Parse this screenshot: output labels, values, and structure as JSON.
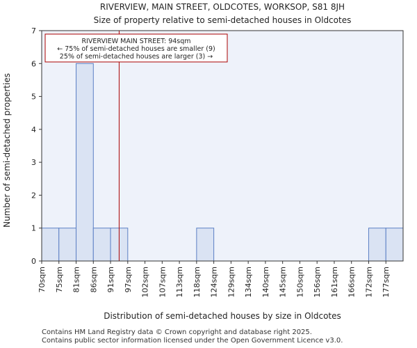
{
  "chart_data": {
    "type": "bar",
    "title": "RIVERVIEW, MAIN STREET, OLDCOTES, WORKSOP, S81 8JH",
    "subtitle": "Size of property relative to semi-detached houses in Oldcotes",
    "xlabel": "Distribution of semi-detached houses by size in Oldcotes",
    "ylabel": "Number of semi-detached properties",
    "categories": [
      "70sqm",
      "75sqm",
      "81sqm",
      "86sqm",
      "91sqm",
      "97sqm",
      "102sqm",
      "107sqm",
      "113sqm",
      "118sqm",
      "124sqm",
      "129sqm",
      "134sqm",
      "140sqm",
      "145sqm",
      "150sqm",
      "156sqm",
      "161sqm",
      "166sqm",
      "172sqm",
      "177sqm"
    ],
    "values": [
      1,
      1,
      6,
      1,
      1,
      0,
      0,
      0,
      0,
      1,
      0,
      0,
      0,
      0,
      0,
      0,
      0,
      0,
      0,
      1,
      1
    ],
    "ylim": [
      0,
      7
    ],
    "yticks": [
      0,
      1,
      2,
      3,
      4,
      5,
      6,
      7
    ],
    "marker": {
      "value_sqm": 94,
      "color": "#aa0000"
    },
    "annotation": {
      "line1": "RIVERVIEW MAIN STREET: 94sqm",
      "line2": "← 75% of semi-detached houses are smaller (9)",
      "line3": "25% of semi-detached houses are larger (3) →"
    },
    "colors": {
      "bar_fill": "#dae3f3",
      "bar_stroke": "#5b7fc4",
      "plot_bg": "#eef2fa"
    },
    "grid": false
  },
  "footer": {
    "line1": "Contains HM Land Registry data © Crown copyright and database right 2025.",
    "line2": "Contains public sector information licensed under the Open Government Licence v3.0."
  }
}
